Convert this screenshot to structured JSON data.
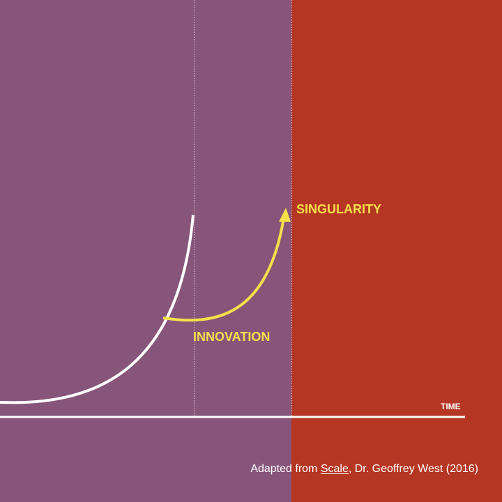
{
  "colors": {
    "purple": "#87557A",
    "red": "#B53622",
    "yellow": "#F5E04A",
    "white": "#FFFFFF"
  },
  "labels": {
    "singularity": "SINGULARITY",
    "innovation": "INNOVATION",
    "time_axis": "TIME"
  },
  "credit": {
    "prefix": "Adapted from ",
    "book": "Scale",
    "suffix": ", Dr. Geoffrey West (2016)"
  }
}
